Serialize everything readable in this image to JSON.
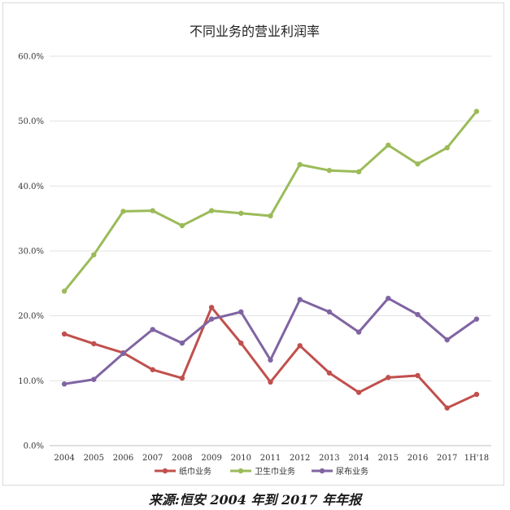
{
  "caption": "来源:恒安 2004 年到 2017 年年报",
  "chart_data": {
    "type": "line",
    "title": "不同业务的营业利润率",
    "xlabel": "",
    "ylabel": "",
    "categories": [
      "2004",
      "2005",
      "2006",
      "2007",
      "2008",
      "2009",
      "2010",
      "2011",
      "2012",
      "2013",
      "2014",
      "2015",
      "2016",
      "2017",
      "1H'18"
    ],
    "ylim": [
      0,
      60
    ],
    "yticks": [
      "0.0%",
      "10.0%",
      "20.0%",
      "30.0%",
      "40.0%",
      "50.0%",
      "60.0%"
    ],
    "grid": true,
    "legend_position": "bottom",
    "series": [
      {
        "name": "纸巾业务",
        "color": "#c0504d",
        "values": [
          17.2,
          15.7,
          14.3,
          11.7,
          10.4,
          21.3,
          15.8,
          9.8,
          15.4,
          11.2,
          8.2,
          10.5,
          10.8,
          5.8,
          7.9
        ]
      },
      {
        "name": "卫生巾业务",
        "color": "#9bbb59",
        "values": [
          23.8,
          29.4,
          36.1,
          36.2,
          33.9,
          36.2,
          35.8,
          35.4,
          43.3,
          42.4,
          42.2,
          46.3,
          43.4,
          45.9,
          51.5
        ]
      },
      {
        "name": "尿布业务",
        "color": "#8064a2",
        "values": [
          9.5,
          10.2,
          14.2,
          17.9,
          15.8,
          19.5,
          20.6,
          13.2,
          22.5,
          20.6,
          17.5,
          22.7,
          20.2,
          16.3,
          19.5
        ]
      }
    ]
  }
}
